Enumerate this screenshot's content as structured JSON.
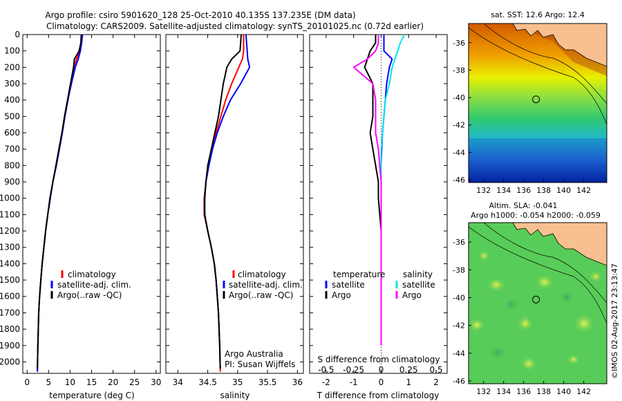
{
  "header": {
    "line1": "Argo profile: csiro 5901620_128 25-Oct-2010 40.135S 137.235E (DM data)",
    "line2": "Climatology: CARS2009. Satellite-adjusted climatology: synTS_20101025.nc (0.72d earlier)"
  },
  "watermark": "©IMOS 02-Aug-2017 23:13:47",
  "colors": {
    "climatology": "#ff0000",
    "satellite": "#0000ff",
    "argo": "#000000",
    "sat_s": "#00e5ee",
    "argo_s": "#ff00ff"
  },
  "chart_data": [
    {
      "type": "line",
      "id": "temperature",
      "xlabel": "temperature (deg C)",
      "xlim": [
        -1,
        31
      ],
      "xticks": [
        0,
        5,
        10,
        15,
        20,
        25,
        30
      ],
      "ylim": [
        0,
        2070
      ],
      "yticks": [
        0,
        100,
        200,
        300,
        400,
        500,
        600,
        700,
        800,
        900,
        1000,
        1100,
        1200,
        1300,
        1400,
        1500,
        1600,
        1700,
        1800,
        1900,
        2000
      ],
      "legend": [
        "climatology",
        "satellite-adj. clim.",
        "Argo(..raw -QC)"
      ],
      "legend_position": "lower-right",
      "series": [
        {
          "name": "climatology",
          "color": "#ff0000",
          "x": [
            12.8,
            12.6,
            12.3,
            11.5,
            10.9,
            10.2,
            9.5,
            8.8,
            8.2,
            7.5,
            6.8,
            6.0,
            5.4,
            4.8,
            4.3,
            3.9,
            3.5,
            3.2,
            2.9,
            2.7,
            2.5,
            2.4
          ],
          "y": [
            0,
            50,
            100,
            150,
            200,
            300,
            400,
            500,
            600,
            700,
            800,
            900,
            1000,
            1100,
            1200,
            1300,
            1400,
            1500,
            1600,
            1700,
            1900,
            2060
          ]
        },
        {
          "name": "satellite-adj. clim.",
          "color": "#0000ff",
          "x": [
            12.9,
            12.7,
            12.4,
            11.9,
            11.2,
            10.3,
            9.5,
            8.8,
            8.2,
            7.5,
            6.8,
            6.0,
            5.4,
            4.8,
            4.3,
            3.9,
            3.5,
            3.2,
            2.9,
            2.7,
            2.5,
            2.4
          ],
          "y": [
            0,
            50,
            100,
            150,
            200,
            300,
            400,
            500,
            600,
            700,
            800,
            900,
            1000,
            1100,
            1200,
            1300,
            1400,
            1500,
            1600,
            1700,
            1900,
            2060
          ]
        },
        {
          "name": "Argo(..raw -QC)",
          "color": "#000000",
          "x": [
            12.6,
            12.5,
            12.1,
            11.0,
            10.8,
            10.1,
            9.4,
            8.7,
            8.1,
            7.4,
            6.7,
            6.0,
            5.3,
            4.8,
            4.3,
            3.9,
            3.5,
            3.2,
            2.9,
            2.7,
            2.5,
            2.4
          ],
          "y": [
            0,
            50,
            100,
            150,
            200,
            300,
            400,
            500,
            600,
            700,
            800,
            900,
            1000,
            1100,
            1200,
            1300,
            1400,
            1500,
            1600,
            1700,
            1900,
            2040
          ]
        }
      ]
    },
    {
      "type": "line",
      "id": "salinity",
      "xlabel": "salinity",
      "xlim": [
        33.8,
        36.1
      ],
      "xticks": [
        34,
        34.5,
        35,
        35.5,
        36
      ],
      "ylim": [
        0,
        2070
      ],
      "legend": [
        "climatology",
        "satellite-adj. clim.",
        "Argo(..raw -QC)"
      ],
      "legend_position": "lower-right",
      "annotation": [
        "Argo Australia",
        "PI: Susan Wijffels"
      ],
      "series": [
        {
          "name": "climatology",
          "color": "#ff0000",
          "x": [
            35.1,
            35.1,
            35.1,
            35.08,
            35.02,
            34.9,
            34.8,
            34.72,
            34.64,
            34.57,
            34.51,
            34.47,
            34.44,
            34.44,
            34.5,
            34.56,
            34.61,
            34.64,
            34.66,
            34.68,
            34.7,
            34.71
          ],
          "y": [
            0,
            50,
            100,
            150,
            200,
            300,
            400,
            500,
            600,
            700,
            800,
            900,
            1000,
            1100,
            1200,
            1300,
            1400,
            1500,
            1600,
            1700,
            1900,
            2060
          ]
        },
        {
          "name": "satellite-adj. clim.",
          "color": "#0000ff",
          "x": [
            35.14,
            35.15,
            35.16,
            35.17,
            35.2,
            35.05,
            34.88,
            34.76,
            34.66,
            34.58,
            34.52,
            34.47,
            34.45,
            34.45,
            34.5,
            34.56,
            34.61,
            34.64,
            34.66,
            34.68,
            34.7,
            34.71
          ],
          "y": [
            0,
            50,
            100,
            150,
            200,
            300,
            400,
            500,
            600,
            700,
            800,
            900,
            1000,
            1100,
            1200,
            1300,
            1400,
            1500,
            1600,
            1700,
            1900,
            2040
          ]
        },
        {
          "name": "Argo(..raw -QC)",
          "color": "#000000",
          "x": [
            35.06,
            35.05,
            35.04,
            34.9,
            34.82,
            34.76,
            34.72,
            34.68,
            34.62,
            34.56,
            34.5,
            34.47,
            34.45,
            34.45,
            34.5,
            34.56,
            34.61,
            34.64,
            34.66,
            34.68,
            34.7,
            34.71
          ],
          "y": [
            0,
            50,
            100,
            150,
            200,
            300,
            400,
            500,
            600,
            700,
            800,
            900,
            1000,
            1100,
            1200,
            1300,
            1400,
            1500,
            1600,
            1700,
            1900,
            2040
          ]
        }
      ]
    },
    {
      "type": "line",
      "id": "difference",
      "xlabel": "T difference from climatology",
      "x2label": "S difference from climatology",
      "xlim": [
        -2.6,
        2.4
      ],
      "xticks": [
        -2,
        -1,
        0,
        1,
        2
      ],
      "x2ticks": [
        -0.5,
        -0.25,
        0,
        0.25,
        0.5
      ],
      "ylim": [
        0,
        2070
      ],
      "legend": [
        "temperature",
        "satellite",
        "Argo",
        "salinity",
        "satellite",
        "Argo"
      ],
      "legend_position": "lower-center",
      "series": [
        {
          "name": "satellite",
          "color": "#0000ff",
          "x": [
            0.1,
            0.1,
            0.1,
            0.4,
            0.3,
            0.2,
            0.15,
            0.1,
            0.05,
            0.02,
            0.0,
            0.0,
            0.0,
            0.0,
            0.0,
            0.0,
            0.0,
            0.0,
            0.0,
            0.0,
            0.0
          ],
          "y": [
            0,
            50,
            100,
            150,
            200,
            300,
            400,
            500,
            600,
            700,
            800,
            900,
            1000,
            1100,
            1200,
            1300,
            1400,
            1500,
            1600,
            1700,
            1900
          ]
        },
        {
          "name": "Argo",
          "color": "#000000",
          "x": [
            -0.2,
            -0.2,
            -0.4,
            -0.5,
            -0.6,
            -0.3,
            -0.3,
            -0.3,
            -0.4,
            -0.3,
            -0.2,
            -0.1,
            -0.1,
            -0.05,
            0.0,
            0.0,
            0.0,
            0.0,
            0.0,
            0.0,
            0.0
          ],
          "y": [
            0,
            50,
            100,
            150,
            200,
            300,
            400,
            500,
            600,
            700,
            800,
            900,
            1000,
            1100,
            1200,
            1300,
            1400,
            1500,
            1600,
            1700,
            1900
          ]
        },
        {
          "name": "satellite",
          "color": "#00e5ee",
          "x": [
            0.85,
            0.7,
            0.6,
            0.5,
            0.4,
            0.3,
            0.15,
            0.1,
            0.05,
            0.0,
            0.0,
            0.0,
            0.0,
            0.0,
            0.0,
            0.0,
            0.0,
            0.0,
            0.0,
            0.0,
            0.0
          ],
          "y": [
            0,
            50,
            100,
            150,
            200,
            300,
            400,
            500,
            600,
            700,
            800,
            900,
            1000,
            1100,
            1200,
            1300,
            1400,
            1500,
            1600,
            1700,
            1900
          ]
        },
        {
          "name": "Argo",
          "color": "#ff00ff",
          "x": [
            -0.1,
            -0.1,
            -0.2,
            -0.5,
            -1.0,
            -0.3,
            -0.2,
            -0.2,
            -0.2,
            -0.1,
            -0.05,
            0.0,
            0.0,
            0.0,
            0.0,
            0.0,
            0.0,
            0.0,
            0.0,
            0.0,
            0.0
          ],
          "y": [
            0,
            50,
            100,
            150,
            200,
            300,
            400,
            500,
            600,
            700,
            800,
            900,
            1000,
            1100,
            1200,
            1300,
            1400,
            1500,
            1600,
            1700,
            1900
          ]
        }
      ]
    },
    {
      "type": "heatmap",
      "id": "sst-map",
      "title": "sat. SST: 12.6  Argo: 12.4",
      "xlim": [
        130.5,
        144.3
      ],
      "ylim": [
        -46.2,
        -34.6
      ],
      "xticks": [
        132,
        134,
        136,
        138,
        140,
        142
      ],
      "yticks": [
        -36,
        -38,
        -40,
        -42,
        -44,
        -46
      ],
      "marker": {
        "lon": 137.235,
        "lat": -40.135
      }
    },
    {
      "type": "heatmap",
      "id": "sla-map",
      "title": "Altim. SLA: -0.041",
      "subtitle": "Argo h1000: -0.054 h2000: -0.059",
      "xlim": [
        130.5,
        144.3
      ],
      "ylim": [
        -46.2,
        -34.6
      ],
      "xticks": [
        132,
        134,
        136,
        138,
        140,
        142
      ],
      "yticks": [
        -36,
        -38,
        -40,
        -42,
        -44,
        -46
      ],
      "marker": {
        "lon": 137.235,
        "lat": -40.135
      }
    }
  ]
}
